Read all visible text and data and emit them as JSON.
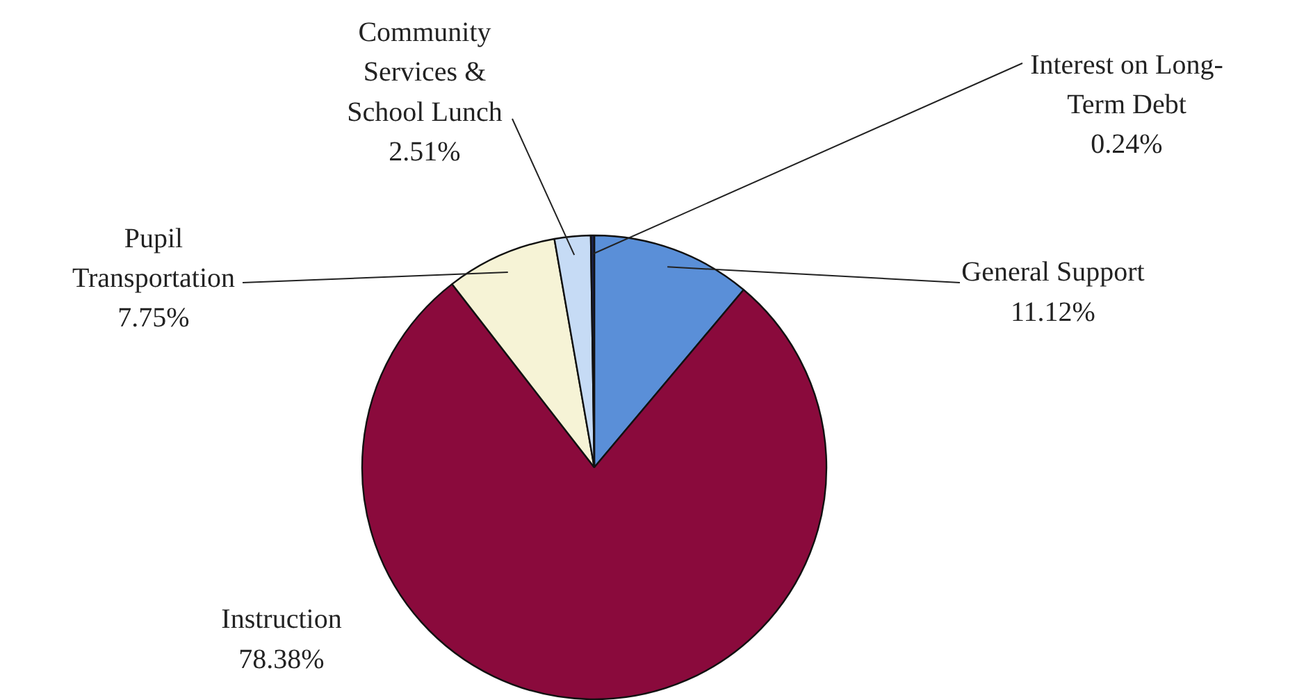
{
  "chart_data": {
    "type": "pie",
    "categories": [
      "General Support",
      "Instruction",
      "Pupil\nTransportation",
      "Community\nServices &\nSchool Lunch",
      "Interest on Long-\nTerm Debt"
    ],
    "values": [
      11.12,
      78.38,
      7.75,
      2.51,
      0.24
    ],
    "value_labels": [
      "11.12%",
      "78.38%",
      "7.75%",
      "2.51%",
      "0.24%"
    ],
    "colors": [
      "#5a8fd8",
      "#8a0a3c",
      "#f6f3d6",
      "#c6dbf5",
      "#1c2450"
    ]
  }
}
